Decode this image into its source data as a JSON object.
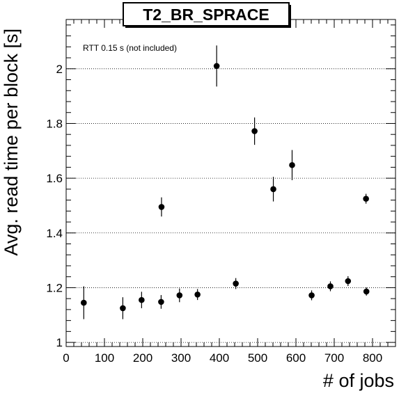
{
  "chart_data": {
    "type": "scatter",
    "title": "T2_BR_SPRACE",
    "xlabel": "# of jobs",
    "ylabel": "Avg. read time per block [s]",
    "annotation": "RTT 0.15 s (not included)",
    "xlim": [
      0,
      860
    ],
    "ylim": [
      0.985,
      2.18
    ],
    "x_ticks": [
      0,
      100,
      200,
      300,
      400,
      500,
      600,
      700,
      800
    ],
    "y_ticks": [
      1,
      1.2,
      1.4,
      1.6,
      1.8,
      2
    ],
    "y_tick_labels": [
      "1",
      "1.2",
      "1.4",
      "1.6",
      "1.8",
      "2"
    ],
    "grid_y": true,
    "grid_style": "dotted",
    "points": [
      {
        "x": 46,
        "y": 1.145,
        "err": 0.06
      },
      {
        "x": 148,
        "y": 1.125,
        "err": 0.04
      },
      {
        "x": 197,
        "y": 1.155,
        "err": 0.03
      },
      {
        "x": 248,
        "y": 1.148,
        "err": 0.025
      },
      {
        "x": 249,
        "y": 1.495,
        "err": 0.035
      },
      {
        "x": 296,
        "y": 1.172,
        "err": 0.025
      },
      {
        "x": 343,
        "y": 1.175,
        "err": 0.02
      },
      {
        "x": 393,
        "y": 2.01,
        "err": 0.075
      },
      {
        "x": 443,
        "y": 1.215,
        "err": 0.02
      },
      {
        "x": 492,
        "y": 1.772,
        "err": 0.05
      },
      {
        "x": 541,
        "y": 1.56,
        "err": 0.045
      },
      {
        "x": 590,
        "y": 1.648,
        "err": 0.055
      },
      {
        "x": 641,
        "y": 1.172,
        "err": 0.018
      },
      {
        "x": 690,
        "y": 1.205,
        "err": 0.018
      },
      {
        "x": 736,
        "y": 1.224,
        "err": 0.018
      },
      {
        "x": 783,
        "y": 1.525,
        "err": 0.018
      },
      {
        "x": 784,
        "y": 1.186,
        "err": 0.015
      }
    ]
  }
}
